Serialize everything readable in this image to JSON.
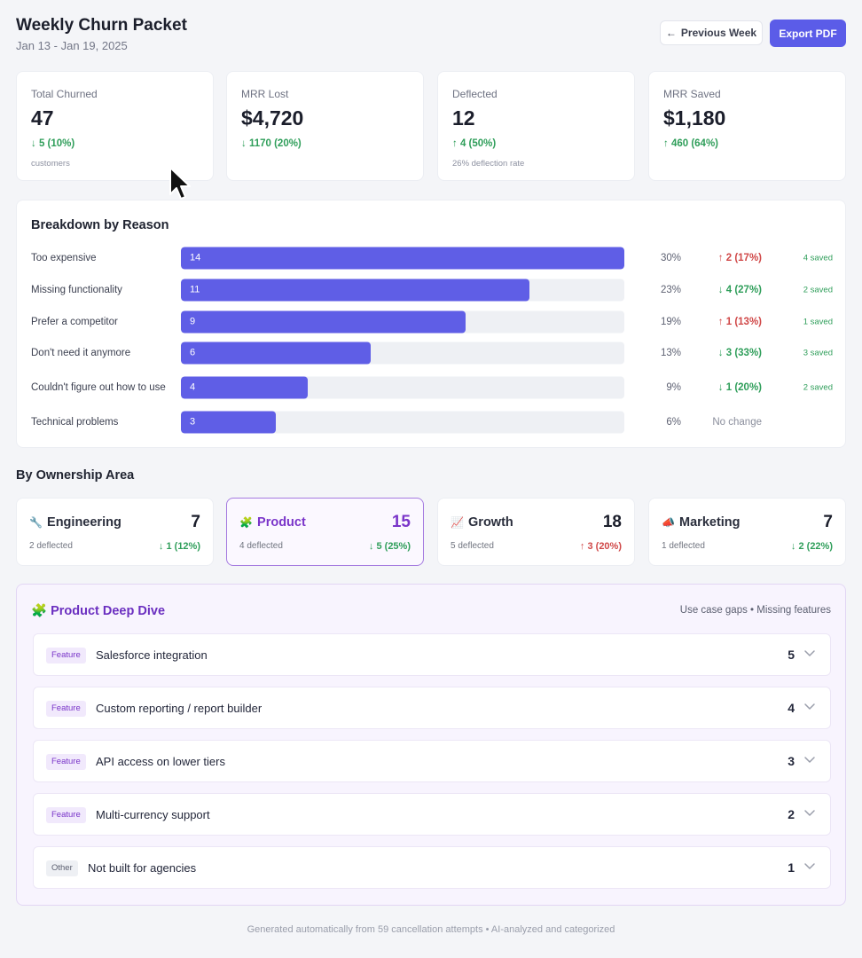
{
  "header": {
    "title": "Weekly Churn Packet",
    "date_range": "Jan 13 - Jan 19, 2025",
    "prev_arrow": "←",
    "prev_label": "Previous Week",
    "export_label": "Export PDF"
  },
  "kpis": [
    {
      "label": "Total Churned",
      "value": "47",
      "delta": "↓ 5 (10%)",
      "direction": "down-good",
      "note": "customers"
    },
    {
      "label": "MRR Lost",
      "value": "$4,720",
      "delta": "↓ 1170 (20%)",
      "direction": "down-good",
      "note": ""
    },
    {
      "label": "Deflected",
      "value": "12",
      "delta": "↑ 4 (50%)",
      "direction": "up-good",
      "note": "26% deflection rate"
    },
    {
      "label": "MRR Saved",
      "value": "$1,180",
      "delta": "↑ 460 (64%)",
      "direction": "up-good",
      "note": ""
    }
  ],
  "breakdown": {
    "title": "Breakdown by Reason",
    "rows": [
      {
        "reason": "Too expensive",
        "count": 14,
        "count_label": "14",
        "pct": "30%",
        "delta": "↑ 2 (17%)",
        "delta_color": "red",
        "saved": "4 saved"
      },
      {
        "reason": "Missing functionality",
        "count": 11,
        "count_label": "11",
        "pct": "23%",
        "delta": "↓ 4 (27%)",
        "delta_color": "green",
        "saved": "2 saved"
      },
      {
        "reason": "Prefer a competitor",
        "count": 9,
        "count_label": "9",
        "pct": "19%",
        "delta": "↑ 1 (13%)",
        "delta_color": "red",
        "saved": "1 saved"
      },
      {
        "reason": "Don't need it anymore",
        "count": 6,
        "count_label": "6",
        "pct": "13%",
        "delta": "↓ 3 (33%)",
        "delta_color": "green",
        "saved": "3 saved"
      },
      {
        "reason": "Couldn't figure out how to use",
        "count": 4,
        "count_label": "4",
        "pct": "9%",
        "delta": "↓ 1 (20%)",
        "delta_color": "green",
        "saved": "2 saved"
      },
      {
        "reason": "Technical problems",
        "count": 3,
        "count_label": "3",
        "pct": "6%",
        "delta": "No change",
        "delta_color": "neutral",
        "saved": ""
      }
    ],
    "max_count": 14
  },
  "ownership": {
    "title": "By Ownership Area",
    "areas": [
      {
        "icon": "🔧",
        "icon_name": "wrench-icon",
        "name": "Engineering",
        "count": "7",
        "deflected": "2 deflected",
        "delta": "↓ 1 (12%)",
        "delta_color": "green",
        "active": false
      },
      {
        "icon": "🧩",
        "icon_name": "puzzle-icon",
        "name": "Product",
        "count": "15",
        "deflected": "4 deflected",
        "delta": "↓ 5 (25%)",
        "delta_color": "green",
        "active": true
      },
      {
        "icon": "📈",
        "icon_name": "chart-up-icon",
        "name": "Growth",
        "count": "18",
        "deflected": "5 deflected",
        "delta": "↑ 3 (20%)",
        "delta_color": "red",
        "active": false
      },
      {
        "icon": "📣",
        "icon_name": "megaphone-icon",
        "name": "Marketing",
        "count": "7",
        "deflected": "1 deflected",
        "delta": "↓ 2 (22%)",
        "delta_color": "green",
        "active": false
      }
    ]
  },
  "deep_dive": {
    "icon": "🧩",
    "title": "Product Deep Dive",
    "meta": "Use case gaps • Missing features",
    "items": [
      {
        "tag": "Feature",
        "text": "Salesforce integration",
        "count": "5"
      },
      {
        "tag": "Feature",
        "text": "Custom reporting / report builder",
        "count": "4"
      },
      {
        "tag": "Feature",
        "text": "API access on lower tiers",
        "count": "3"
      },
      {
        "tag": "Feature",
        "text": "Multi-currency support",
        "count": "2"
      },
      {
        "tag": "Other",
        "text": "Not built for agencies",
        "count": "1"
      }
    ]
  },
  "footer": "Generated automatically from 59 cancellation attempts • AI-analyzed and categorized",
  "colors": {
    "accent": "#5b5ce8",
    "bar": "#5f5ee6",
    "good": "#2f9e5a",
    "bad": "#d04848",
    "product": "#7a35c9"
  }
}
